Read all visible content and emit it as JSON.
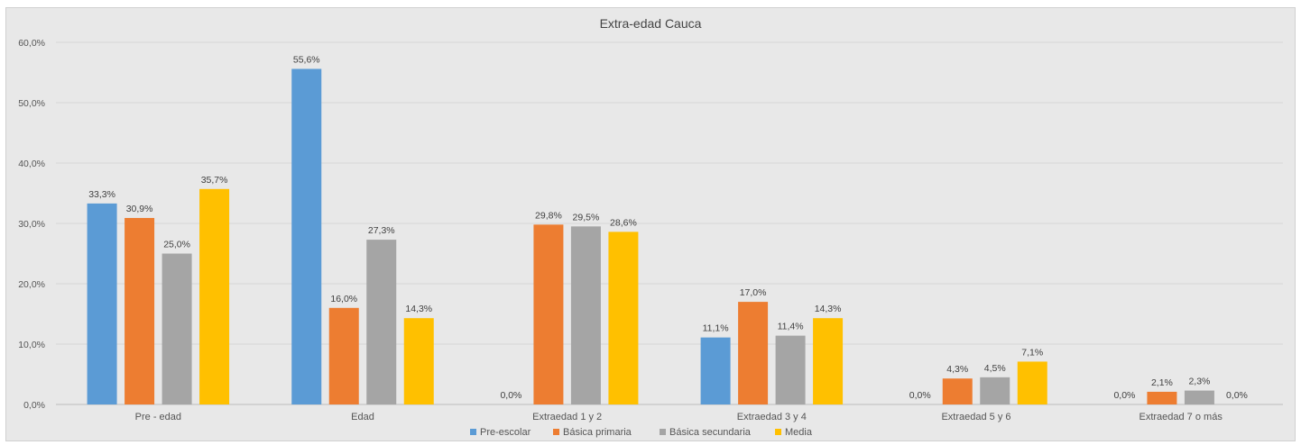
{
  "chart_data": {
    "type": "bar",
    "title": "Extra-edad Cauca",
    "categories": [
      "Pre - edad",
      "Edad",
      "Extraedad 1 y 2",
      "Extraedad 3 y 4",
      "Extraedad 5 y 6",
      "Extraedad 7 o más"
    ],
    "series": [
      {
        "name": "Pre-escolar",
        "color": "#5b9bd5",
        "values": [
          33.3,
          55.6,
          0.0,
          11.1,
          0.0,
          0.0
        ],
        "labels": [
          "33,3%",
          "55,6%",
          "0,0%",
          "11,1%",
          "0,0%",
          "0,0%"
        ]
      },
      {
        "name": "Básica primaria",
        "color": "#ed7d31",
        "values": [
          30.9,
          16.0,
          29.8,
          17.0,
          4.3,
          2.1
        ],
        "labels": [
          "30,9%",
          "16,0%",
          "29,8%",
          "17,0%",
          "4,3%",
          "2,1%"
        ]
      },
      {
        "name": "Básica secundaria",
        "color": "#a5a5a5",
        "values": [
          25.0,
          27.3,
          29.5,
          11.4,
          4.5,
          2.3
        ],
        "labels": [
          "25,0%",
          "27,3%",
          "29,5%",
          "11,4%",
          "4,5%",
          "2,3%"
        ]
      },
      {
        "name": "Media",
        "color": "#ffc000",
        "values": [
          35.7,
          14.3,
          28.6,
          14.3,
          7.1,
          0.0
        ],
        "labels": [
          "35,7%",
          "14,3%",
          "28,6%",
          "14,3%",
          "7,1%",
          "0,0%"
        ]
      }
    ],
    "ylim": [
      0,
      60
    ],
    "yticks": [
      0,
      10,
      20,
      30,
      40,
      50,
      60
    ],
    "ytick_labels": [
      "0,0%",
      "10,0%",
      "20,0%",
      "30,0%",
      "40,0%",
      "50,0%",
      "60,0%"
    ],
    "grid": true,
    "legend_position": "bottom"
  }
}
